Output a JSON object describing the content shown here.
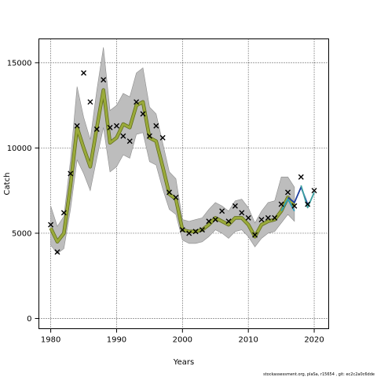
{
  "chart_data": {
    "type": "line",
    "title": "",
    "xlabel": "Years",
    "ylabel": "Catch",
    "xlim": [
      1978.2,
      2022.2
    ],
    "ylim": [
      -600,
      16400
    ],
    "x_ticks": [
      1980,
      1990,
      2000,
      2010,
      2020
    ],
    "y_ticks": [
      0,
      5000,
      10000,
      15000
    ],
    "grid": true,
    "grid_style": "dotted",
    "legend": "none",
    "colors": {
      "band": "#bdbdbd",
      "band_edge": "#8c8c8c",
      "main_line": "#9aaa3a",
      "main_line_edge": "#5d6a1a",
      "retro_lines": [
        "#2a9fbf",
        "#1f3f9f",
        "#3ca0a0"
      ],
      "observed_marker": "#000000"
    },
    "series": [
      {
        "name": "",
        "role": "fitted",
        "x": [
          1980,
          1981,
          1982,
          1983,
          1984,
          1985,
          1986,
          1987,
          1988,
          1989,
          1990,
          1991,
          1992,
          1993,
          1994,
          1995,
          1996,
          1997,
          1998,
          1999,
          2000,
          2001,
          2002,
          2003,
          2004,
          2005,
          2006,
          2007,
          2008,
          2009,
          2010,
          2011,
          2012,
          2013,
          2014,
          2015,
          2016,
          2017
        ],
        "y": [
          5300,
          4500,
          5000,
          7800,
          11200,
          10000,
          8900,
          11200,
          13400,
          10300,
          10600,
          11400,
          11200,
          12500,
          12700,
          10600,
          10400,
          8900,
          7300,
          7000,
          5200,
          5100,
          5100,
          5200,
          5500,
          5900,
          5700,
          5500,
          5900,
          5900,
          5500,
          4800,
          5500,
          5700,
          5800,
          6300,
          7100,
          6600
        ],
        "lower": [
          4300,
          3800,
          4100,
          6400,
          9300,
          8500,
          7500,
          9400,
          11200,
          8600,
          8900,
          9600,
          9400,
          10800,
          10900,
          9200,
          9000,
          7600,
          6400,
          6100,
          4600,
          4400,
          4400,
          4500,
          4800,
          5200,
          5000,
          4700,
          5100,
          5200,
          4800,
          4200,
          4700,
          5000,
          5100,
          5600,
          6100,
          5700
        ],
        "upper": [
          6600,
          5400,
          6000,
          9300,
          13600,
          11800,
          10500,
          13400,
          15900,
          12200,
          12500,
          13200,
          13000,
          14400,
          14700,
          12400,
          12000,
          10300,
          8600,
          8200,
          5800,
          5700,
          5800,
          5900,
          6400,
          6800,
          6600,
          6300,
          6900,
          7000,
          6500,
          5600,
          6300,
          6800,
          6900,
          8300,
          8300,
          7700
        ]
      },
      {
        "name": "",
        "role": "retrospective",
        "x": [
          2015,
          2016,
          2017
        ],
        "y": [
          6300,
          7000,
          6300
        ]
      },
      {
        "name": "",
        "role": "retrospective",
        "x": [
          2016,
          2017,
          2018,
          2019
        ],
        "y": [
          7100,
          6800,
          7700,
          6700
        ]
      },
      {
        "name": "",
        "role": "retrospective",
        "x": [
          2018,
          2019,
          2020
        ],
        "y": [
          7800,
          6500,
          7400
        ]
      },
      {
        "name": "",
        "role": "observed",
        "marker": "x",
        "x": [
          1980,
          1981,
          1982,
          1983,
          1984,
          1985,
          1986,
          1987,
          1988,
          1989,
          1990,
          1991,
          1992,
          1993,
          1994,
          1995,
          1996,
          1997,
          1998,
          1999,
          2000,
          2001,
          2002,
          2003,
          2004,
          2005,
          2006,
          2007,
          2008,
          2009,
          2010,
          2011,
          2012,
          2013,
          2014,
          2015,
          2016,
          2017,
          2018,
          2019,
          2020
        ],
        "y": [
          5500,
          3900,
          6200,
          8500,
          11300,
          14400,
          12700,
          11100,
          14000,
          11200,
          11300,
          10700,
          10400,
          12700,
          12000,
          10700,
          11300,
          10600,
          7400,
          7100,
          5200,
          5000,
          5100,
          5200,
          5700,
          5800,
          6300,
          5700,
          6600,
          6200,
          5900,
          4900,
          5800,
          5900,
          5900,
          6700,
          7400,
          6600,
          8300,
          6700,
          7500
        ]
      }
    ]
  },
  "footer": {
    "text": "stockassessment.org, plaSa, r15654 , git: ec2c2a0c6dde"
  }
}
